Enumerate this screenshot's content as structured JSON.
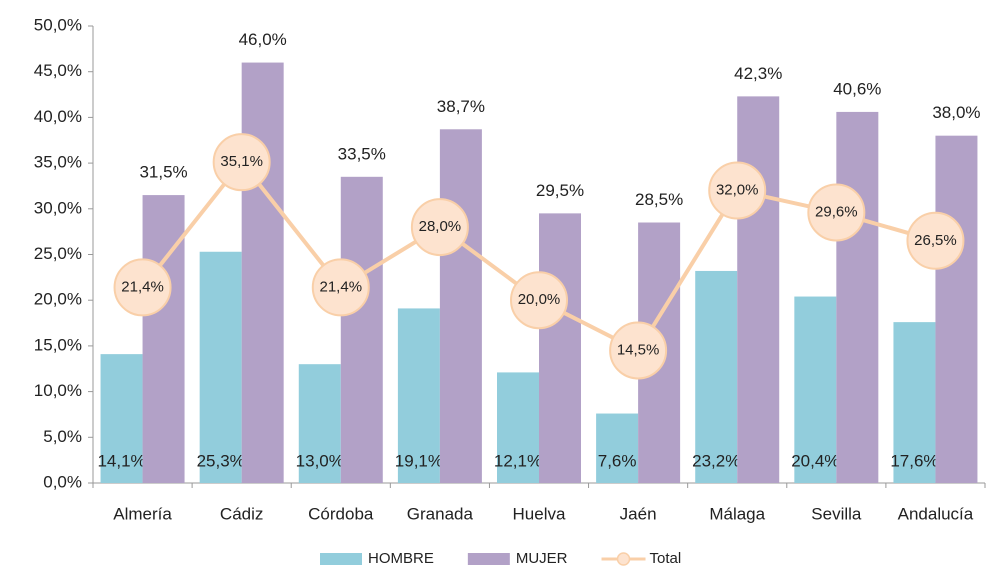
{
  "chart_data": {
    "type": "bar",
    "categories": [
      "Almería",
      "Cádiz",
      "Córdoba",
      "Granada",
      "Huelva",
      "Jaén",
      "Málaga",
      "Sevilla",
      "Andalucía"
    ],
    "series": [
      {
        "name": "HOMBRE",
        "type": "bar",
        "color": "#92cddc",
        "values": [
          14.1,
          25.3,
          13.0,
          19.1,
          12.1,
          7.6,
          23.2,
          20.4,
          17.6
        ],
        "value_labels": [
          "14,1%",
          "25,3%",
          "13,0%",
          "19,1%",
          "12,1%",
          "7,6%",
          "23,2%",
          "20,4%",
          "17,6%"
        ]
      },
      {
        "name": "MUJER",
        "type": "bar",
        "color": "#b2a1c7",
        "values": [
          31.5,
          46.0,
          33.5,
          38.7,
          29.5,
          28.5,
          42.3,
          40.6,
          38.0
        ],
        "value_labels": [
          "31,5%",
          "46,0%",
          "33,5%",
          "38,7%",
          "29,5%",
          "28,5%",
          "42,3%",
          "40,6%",
          "38,0%"
        ]
      },
      {
        "name": "Total",
        "type": "line",
        "color": "#f9cfa8",
        "values": [
          21.4,
          35.1,
          21.4,
          28.0,
          20.0,
          14.5,
          32.0,
          29.6,
          26.5
        ],
        "value_labels": [
          "21,4%",
          "35,1%",
          "21,4%",
          "28,0%",
          "20,0%",
          "14,5%",
          "32,0%",
          "29,6%",
          "26,5%"
        ]
      }
    ],
    "ylim": [
      0,
      50
    ],
    "yticks": [
      {
        "value": 0,
        "label": "0,0%"
      },
      {
        "value": 5,
        "label": "5,0%"
      },
      {
        "value": 10,
        "label": "10,0%"
      },
      {
        "value": 15,
        "label": "15,0%"
      },
      {
        "value": 20,
        "label": "20,0%"
      },
      {
        "value": 25,
        "label": "25,0%"
      },
      {
        "value": 30,
        "label": "30,0%"
      },
      {
        "value": 35,
        "label": "35,0%"
      },
      {
        "value": 40,
        "label": "40,0%"
      },
      {
        "value": 45,
        "label": "45,0%"
      },
      {
        "value": 50,
        "label": "50,0%"
      }
    ],
    "grid": false,
    "legend": "bottom"
  }
}
